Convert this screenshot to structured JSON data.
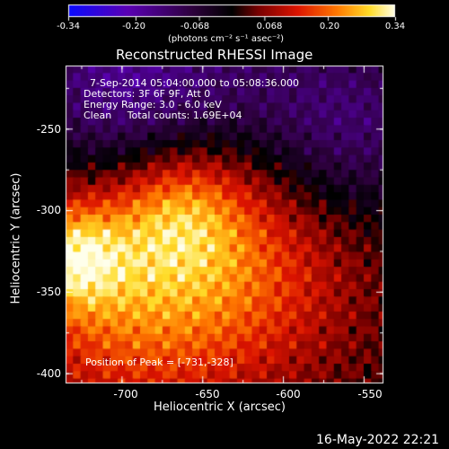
{
  "chart_data": {
    "type": "heatmap",
    "title": "Reconstructed RHESSI Image",
    "xlabel": "Heliocentric X (arcsec)",
    "ylabel": "Heliocentric Y (arcsec)",
    "xlim": [
      -735,
      -538
    ],
    "ylim": [
      -406,
      -211
    ],
    "x_ticks": [
      "-700",
      "-650",
      "-600",
      "-550"
    ],
    "x_tick_values": [
      -700,
      -650,
      -600,
      -550
    ],
    "y_ticks": [
      "-250",
      "-300",
      "-350",
      "-400"
    ],
    "y_tick_values": [
      -250,
      -300,
      -350,
      -400
    ],
    "colorbar": {
      "min": -0.34,
      "max": 0.34,
      "ticks": [
        "-0.34",
        "-0.20",
        "-0.068",
        "0.068",
        "0.20",
        "0.34"
      ],
      "tick_values": [
        -0.34,
        -0.2,
        -0.068,
        0.068,
        0.2,
        0.34
      ],
      "unit_label": "(photons cm⁻² s⁻¹ asec⁻²)"
    },
    "annotations": [
      "7-Sep-2014 05:04:00.000 to 05:08:36.000",
      "Detectors: 3F 6F 9F, Att 0",
      "Energy Range: 3.0 - 6.0 keV",
      "Clean     Total counts: 1.69E+04"
    ],
    "peak_label": "Position of Peak = [-731,-328]",
    "peak": [
      -731,
      -328
    ],
    "secondary_peak": [
      -663,
      -300
    ],
    "colormap": "red-temperature"
  },
  "footer": {
    "timestamp": "16-May-2022 22:21"
  }
}
